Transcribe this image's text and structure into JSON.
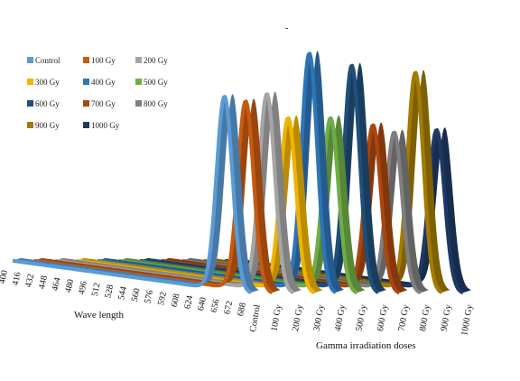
{
  "chart_data": {
    "type": "area",
    "title": "",
    "xlabel": "Wave length",
    "zlabel": "Gamma irradiation doses",
    "x_ticks": [
      "400",
      "416",
      "432",
      "448",
      "464",
      "480",
      "496",
      "512",
      "528",
      "544",
      "560",
      "576",
      "592",
      "608",
      "624",
      "640",
      "656",
      "672",
      "688"
    ],
    "series": [
      {
        "name": "Control",
        "color": "#5b9bd5",
        "peak_wavelength": 656,
        "peak": 0.82
      },
      {
        "name": "100 Gy",
        "color": "#c55a11",
        "peak_wavelength": 656,
        "peak": 0.8
      },
      {
        "name": "200 Gy",
        "color": "#a5a5a5",
        "peak_wavelength": 656,
        "peak": 0.83
      },
      {
        "name": "300 Gy",
        "color": "#f0b400",
        "peak_wavelength": 656,
        "peak": 0.73
      },
      {
        "name": "400 Gy",
        "color": "#2e75b6",
        "peak_wavelength": 656,
        "peak": 1.0
      },
      {
        "name": "500 Gy",
        "color": "#70ad47",
        "peak_wavelength": 656,
        "peak": 0.73
      },
      {
        "name": "600 Gy",
        "color": "#1f4e79",
        "peak_wavelength": 656,
        "peak": 0.95
      },
      {
        "name": "700 Gy",
        "color": "#a9470f",
        "peak_wavelength": 656,
        "peak": 0.7
      },
      {
        "name": "800 Gy",
        "color": "#7f7f7f",
        "peak_wavelength": 656,
        "peak": 0.67
      },
      {
        "name": "900 Gy",
        "color": "#a37b00",
        "peak_wavelength": 656,
        "peak": 0.92
      },
      {
        "name": "1000 Gy",
        "color": "#1f3864",
        "peak_wavelength": 656,
        "peak": 0.68
      }
    ],
    "legend_position": "top-left",
    "grid": false
  },
  "header_mark": "-"
}
